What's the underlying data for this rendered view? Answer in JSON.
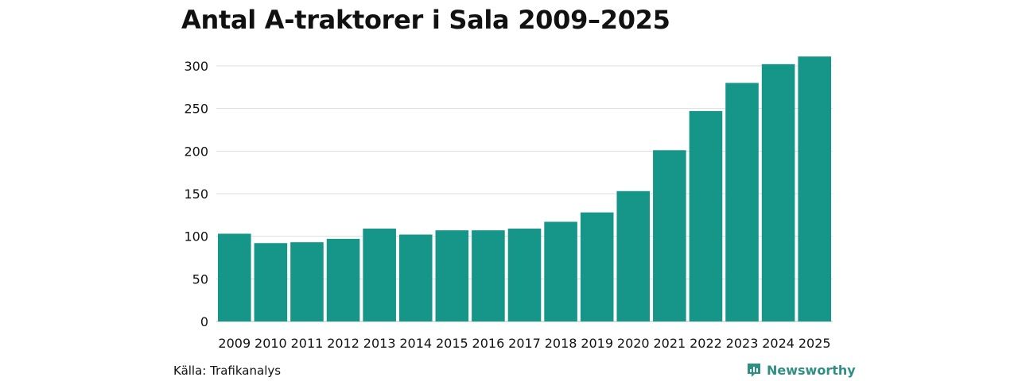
{
  "colors": {
    "bar": "#159688",
    "grid": "#dddddd",
    "text": "#111111",
    "brand": "#2f8f83"
  },
  "footer": {
    "source": "Källa: Trafikanalys",
    "brand": "Newsworthy",
    "brand_icon": "newsworthy-logo-icon"
  },
  "chart_data": {
    "type": "bar",
    "title": "Antal A-traktorer i Sala 2009–2025",
    "xlabel": "",
    "ylabel": "",
    "ylim": [
      0,
      310
    ],
    "yticks": [
      0,
      50,
      100,
      150,
      200,
      250,
      300
    ],
    "grid": true,
    "categories": [
      "2009",
      "2010",
      "2011",
      "2012",
      "2013",
      "2014",
      "2015",
      "2016",
      "2017",
      "2018",
      "2019",
      "2020",
      "2021",
      "2022",
      "2023",
      "2024",
      "2025"
    ],
    "values": [
      103,
      92,
      93,
      97,
      109,
      102,
      107,
      107,
      109,
      117,
      128,
      153,
      201,
      247,
      280,
      302,
      311
    ]
  }
}
